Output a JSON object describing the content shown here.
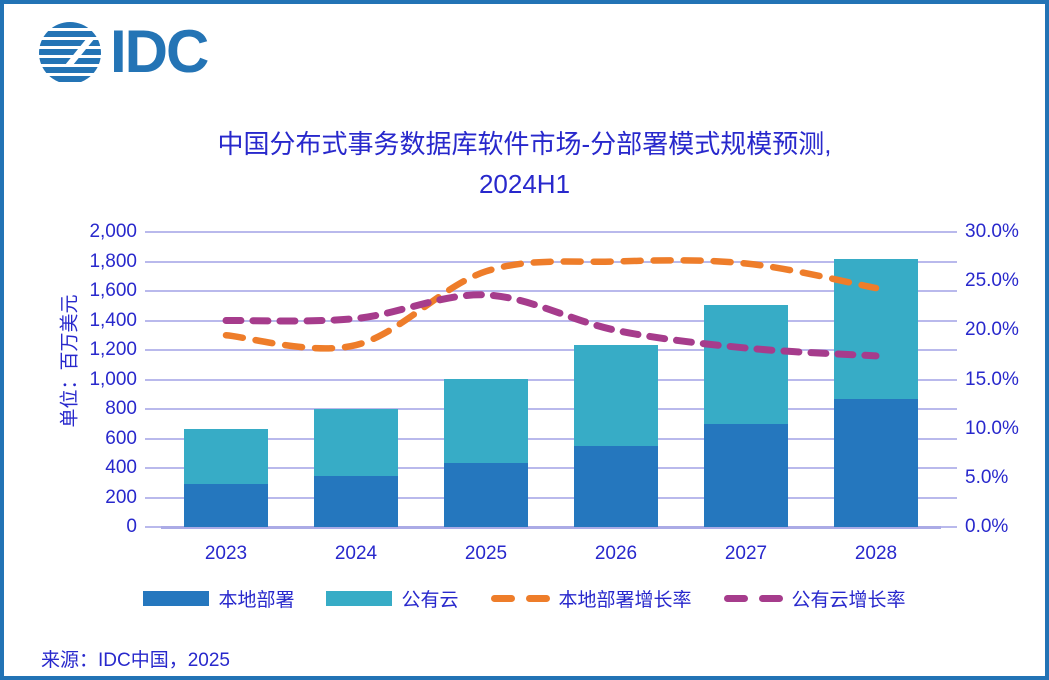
{
  "logo": {
    "text": "IDC"
  },
  "title": {
    "line1": "中国分布式事务数据库软件市场-分部署模式规模预测,",
    "line2": "2024H1"
  },
  "source": "来源：IDC中国，2025",
  "legend": {
    "items": [
      {
        "label": "本地部署",
        "type": "bar",
        "color": "#2577BE"
      },
      {
        "label": "公有云",
        "type": "bar",
        "color": "#37ACC6"
      },
      {
        "label": "本地部署增长率",
        "type": "dash",
        "color": "#EE7D2A"
      },
      {
        "label": "公有云增长率",
        "type": "dash",
        "color": "#A63C8C"
      }
    ]
  },
  "chart_data": {
    "type": "bar",
    "subtype": "stacked-bars-with-growth-lines",
    "title": "中国分布式事务数据库软件市场-分部署模式规模预测, 2024H1",
    "categories": [
      "2023",
      "2024",
      "2025",
      "2026",
      "2027",
      "2028"
    ],
    "bar_series": [
      {
        "name": "本地部署",
        "color": "#2577BE",
        "axis": "left",
        "values": [
          290,
          343,
          433,
          550,
          697,
          866
        ]
      },
      {
        "name": "公有云",
        "color": "#37ACC6",
        "axis": "left",
        "values": [
          376,
          460,
          570,
          684,
          807,
          948
        ]
      }
    ],
    "line_series": [
      {
        "name": "本地部署增长率",
        "color": "#EE7D2A",
        "axis": "right",
        "style": "dashed",
        "values_percent": [
          19.5,
          18.5,
          26.0,
          27.0,
          26.8,
          24.3
        ]
      },
      {
        "name": "公有云增长率",
        "color": "#A63C8C",
        "axis": "right",
        "style": "dashed",
        "values_percent": [
          21.0,
          21.2,
          23.6,
          20.0,
          18.2,
          17.4
        ]
      }
    ],
    "left_axis": {
      "title": "单位：百万美元",
      "min": 0,
      "max": 2000,
      "step": 200,
      "tick_labels": [
        "0",
        "200",
        "400",
        "600",
        "800",
        "1,000",
        "1,200",
        "1,400",
        "1,600",
        "1,800",
        "2,000"
      ]
    },
    "right_axis": {
      "min": 0,
      "max": 30,
      "step": 5,
      "tick_labels": [
        "0.0%",
        "5.0%",
        "10.0%",
        "15.0%",
        "20.0%",
        "25.0%",
        "30.0%"
      ]
    },
    "grid": true,
    "legend_position": "bottom"
  },
  "colors": {
    "text": "#2828CC",
    "grid": "#B9B9EC",
    "border": "#2273B5",
    "logo": "#2474B5",
    "bar_onprem": "#2577BE",
    "bar_cloud": "#37ACC6",
    "line_onprem_growth": "#EE7D2A",
    "line_cloud_growth": "#A63C8C",
    "background": "#FFFFFF"
  }
}
